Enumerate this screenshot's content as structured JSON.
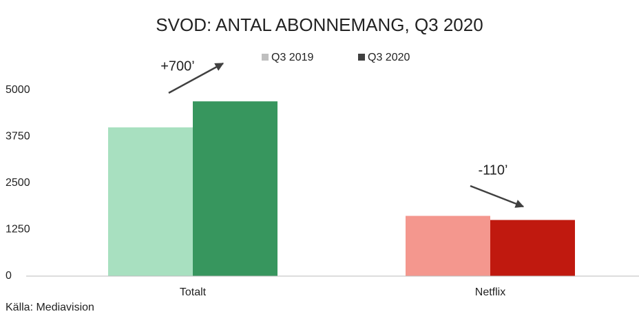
{
  "chart_data": {
    "type": "bar",
    "title": "SVOD: ANTAL ABONNEMANG, Q3 2020",
    "categories": [
      "Totalt",
      "Netflix"
    ],
    "series": [
      {
        "name": "Q3 2019",
        "color": "#bfbfbf",
        "bar_colors": [
          "#a8e0c0",
          "#f4978e"
        ],
        "values": [
          4000,
          1620
        ]
      },
      {
        "name": "Q3 2020",
        "color": "#404040",
        "bar_colors": [
          "#37965e",
          "#c0190f"
        ],
        "values": [
          4700,
          1510
        ]
      }
    ],
    "ylim": [
      0,
      5000
    ],
    "yticks": [
      0,
      1250,
      2500,
      3750,
      5000
    ],
    "grid": false,
    "annotations": [
      "+700’",
      "-110’"
    ],
    "source": "Källa: Mediavision"
  }
}
